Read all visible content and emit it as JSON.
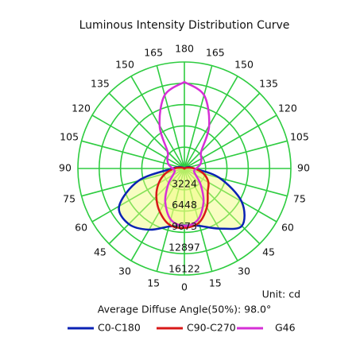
{
  "chart_data": {
    "type": "polar",
    "title": "Luminous Intensity Distribution Curve",
    "unit_label": "Unit: cd",
    "annotation": "Average Diffuse Angle(50%): 98.0°",
    "x": [
      -180,
      -165,
      -150,
      -135,
      -120,
      -105,
      -90,
      -75,
      -60,
      -45,
      -30,
      -15,
      0,
      15,
      30,
      45,
      60,
      75,
      90,
      105,
      120,
      135,
      150,
      165,
      180
    ],
    "rlim": [
      0,
      16122
    ],
    "rticks": [
      3224,
      6448,
      9673,
      12897,
      16122
    ],
    "thetaticks": [
      {
        "value": -165,
        "label": "165"
      },
      {
        "value": -150,
        "label": "150"
      },
      {
        "value": -135,
        "label": "135"
      },
      {
        "value": -120,
        "label": "120"
      },
      {
        "value": -105,
        "label": "105"
      },
      {
        "value": -90,
        "label": "90"
      },
      {
        "value": -75,
        "label": "75"
      },
      {
        "value": -60,
        "label": "60"
      },
      {
        "value": -45,
        "label": "45"
      },
      {
        "value": -30,
        "label": "30"
      },
      {
        "value": -15,
        "label": "15"
      },
      0,
      15,
      30,
      45,
      60,
      75,
      90,
      105,
      120,
      135,
      150,
      165,
      180
    ],
    "grid": true,
    "series": [
      {
        "name": "C0-C180",
        "color": "#0a22b4",
        "values": [
          0,
          0,
          0,
          0,
          300,
          800,
          1800,
          7200,
          11400,
          11900,
          10700,
          9100,
          8540,
          9000,
          10500,
          12300,
          10000,
          5500,
          1500,
          800,
          300,
          0,
          0,
          0,
          0
        ]
      },
      {
        "name": "C90-C270",
        "color": "#d81818",
        "values": [
          0,
          0,
          0,
          0,
          0,
          500,
          1500,
          3000,
          4500,
          6000,
          7500,
          8800,
          9000,
          8500,
          6800,
          5000,
          4200,
          3000,
          1500,
          500,
          0,
          0,
          0,
          0,
          0
        ]
      },
      {
        "name": "G46",
        "color": "#d62fd6",
        "values": [
          13100,
          11500,
          7500,
          3600,
          3000,
          2500,
          1800,
          1500,
          2000,
          3500,
          5800,
          8000,
          8700,
          8000,
          5800,
          3500,
          2000,
          1500,
          1800,
          2500,
          3000,
          3600,
          7500,
          11500,
          13100
        ]
      }
    ]
  }
}
